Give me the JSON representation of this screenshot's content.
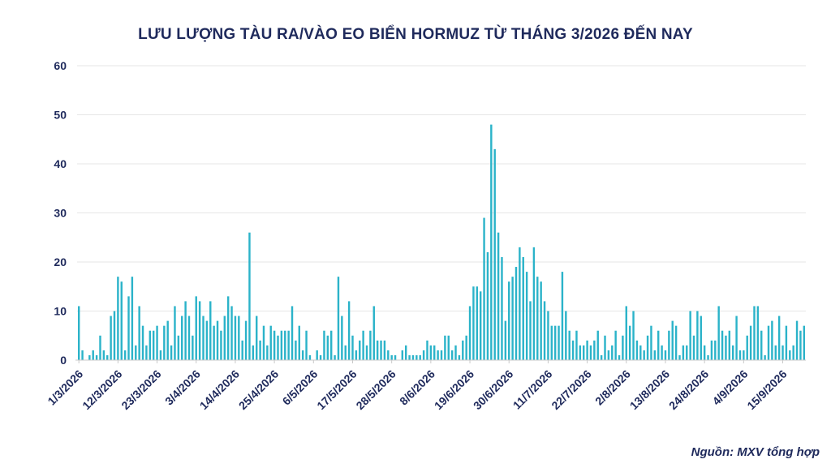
{
  "chart_data": {
    "type": "bar",
    "title": "LƯU LƯỢNG TÀU RA/VÀO EO BIỂN HORMUZ TỪ THÁNG 3/2026 ĐẾN NAY",
    "source": "Nguồn: MXV tổng hợp",
    "xlabel": "",
    "ylabel": "",
    "ylim": [
      0,
      60
    ],
    "yticks": [
      0,
      10,
      20,
      30,
      40,
      50,
      60
    ],
    "grid": true,
    "legend": "none",
    "bar_color": "#2bb3c9",
    "start_date": "1/3/2026",
    "tick_labels": [
      "1/3/2026",
      "12/3/2026",
      "23/3/2026",
      "3/4/2026",
      "14/4/2026",
      "25/4/2026",
      "6/5/2026",
      "17/5/2026",
      "28/5/2026",
      "8/6/2026",
      "19/6/2026",
      "30/6/2026",
      "11/7/2026",
      "22/7/2026",
      "2/8/2026",
      "13/8/2026",
      "24/8/2026",
      "4/9/2026",
      "15/9/2026"
    ],
    "values": [
      11,
      2,
      0,
      1,
      2,
      1,
      5,
      2,
      1,
      9,
      10,
      17,
      16,
      2,
      13,
      17,
      3,
      11,
      7,
      3,
      6,
      6,
      7,
      2,
      7,
      8,
      3,
      11,
      5,
      9,
      12,
      9,
      5,
      13,
      12,
      9,
      8,
      12,
      7,
      8,
      6,
      9,
      13,
      11,
      9,
      9,
      4,
      8,
      26,
      3,
      9,
      4,
      7,
      3,
      7,
      6,
      5,
      6,
      6,
      6,
      11,
      4,
      7,
      2,
      6,
      1,
      0,
      2,
      1,
      6,
      5,
      6,
      1,
      17,
      9,
      3,
      12,
      5,
      2,
      4,
      6,
      3,
      6,
      11,
      4,
      4,
      4,
      2,
      1,
      1,
      0,
      2,
      3,
      1,
      1,
      1,
      1,
      2,
      4,
      3,
      3,
      2,
      2,
      5,
      5,
      2,
      3,
      1,
      4,
      5,
      11,
      15,
      15,
      14,
      29,
      22,
      48,
      43,
      26,
      21,
      8,
      16,
      17,
      19,
      23,
      21,
      18,
      12,
      23,
      17,
      16,
      12,
      10,
      7,
      7,
      7,
      18,
      10,
      6,
      4,
      6,
      3,
      3,
      4,
      3,
      4,
      6,
      1,
      5,
      2,
      3,
      6,
      1,
      5,
      11,
      7,
      10,
      4,
      3,
      2,
      5,
      7,
      2,
      6,
      3,
      2,
      6,
      8,
      7,
      1,
      3,
      3,
      10,
      5,
      10,
      9,
      3,
      1,
      4,
      4,
      11,
      6,
      5,
      6,
      3,
      9,
      2,
      2,
      5,
      7,
      11,
      11,
      6,
      1,
      7,
      8,
      3,
      9,
      3,
      7,
      2,
      3,
      8,
      6,
      7
    ]
  }
}
